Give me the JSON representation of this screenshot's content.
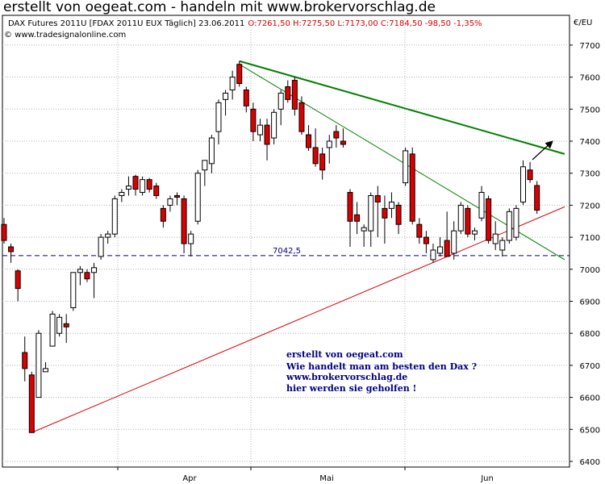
{
  "headline": "erstellt von oegeat.com - handeln mit www.brokervorschlag.de",
  "info": {
    "instrument": "DAX Futures 2011U [FDAX 2011U EUX  Täglich] 23.06.2011",
    "ohlc": "O:7261,50 H:7275,50 L:7173,00 C:7184,50 -98,50 -1,35%",
    "copyright": "© www.tradesignalonline.com",
    "currency": "€/EU"
  },
  "colors": {
    "bull": "#ffffff",
    "bear": "#dd0000",
    "wick": "#000000",
    "trend_green": "#008000",
    "trend_red": "#dd0000",
    "note": "#000080",
    "support": "#000080"
  },
  "chart_data": {
    "type": "candlestick",
    "y_axis": {
      "min": 6400,
      "max": 7700,
      "ticks": [
        6400,
        6500,
        6600,
        6700,
        6800,
        6900,
        7000,
        7100,
        7200,
        7300,
        7400,
        7500,
        7600,
        7700
      ]
    },
    "x_labels": [
      "Apr",
      "Mai",
      "Jun"
    ],
    "candles": [
      {
        "o": 7140,
        "h": 7160,
        "l": 7080,
        "c": 7090
      },
      {
        "o": 7070,
        "h": 7080,
        "l": 7020,
        "c": 7055
      },
      {
        "o": 6995,
        "h": 7000,
        "l": 6900,
        "c": 6940
      },
      {
        "o": 6740,
        "h": 6790,
        "l": 6650,
        "c": 6690
      },
      {
        "o": 6670,
        "h": 6680,
        "l": 6490,
        "c": 6490
      },
      {
        "o": 6600,
        "h": 6810,
        "l": 6600,
        "c": 6800
      },
      {
        "o": 6680,
        "h": 6710,
        "l": 6680,
        "c": 6690
      },
      {
        "o": 6760,
        "h": 6870,
        "l": 6760,
        "c": 6860
      },
      {
        "o": 6800,
        "h": 6860,
        "l": 6790,
        "c": 6850
      },
      {
        "o": 6830,
        "h": 6860,
        "l": 6770,
        "c": 6820
      },
      {
        "o": 6880,
        "h": 6990,
        "l": 6870,
        "c": 6990
      },
      {
        "o": 6990,
        "h": 7010,
        "l": 6950,
        "c": 7000
      },
      {
        "o": 6990,
        "h": 7000,
        "l": 6960,
        "c": 6970
      },
      {
        "o": 6990,
        "h": 7020,
        "l": 6910,
        "c": 7005
      },
      {
        "o": 7040,
        "h": 7110,
        "l": 7030,
        "c": 7100
      },
      {
        "o": 7100,
        "h": 7120,
        "l": 7080,
        "c": 7110
      },
      {
        "o": 7110,
        "h": 7230,
        "l": 7100,
        "c": 7220
      },
      {
        "o": 7230,
        "h": 7250,
        "l": 7210,
        "c": 7240
      },
      {
        "o": 7250,
        "h": 7290,
        "l": 7230,
        "c": 7260
      },
      {
        "o": 7290,
        "h": 7295,
        "l": 7230,
        "c": 7250
      },
      {
        "o": 7240,
        "h": 7290,
        "l": 7230,
        "c": 7280
      },
      {
        "o": 7280,
        "h": 7285,
        "l": 7240,
        "c": 7250
      },
      {
        "o": 7260,
        "h": 7270,
        "l": 7220,
        "c": 7230
      },
      {
        "o": 7190,
        "h": 7200,
        "l": 7130,
        "c": 7150
      },
      {
        "o": 7200,
        "h": 7230,
        "l": 7180,
        "c": 7220
      },
      {
        "o": 7230,
        "h": 7240,
        "l": 7200,
        "c": 7225
      },
      {
        "o": 7220,
        "h": 7230,
        "l": 7050,
        "c": 7080
      },
      {
        "o": 7080,
        "h": 7120,
        "l": 7040,
        "c": 7110
      },
      {
        "o": 7150,
        "h": 7310,
        "l": 7140,
        "c": 7300
      },
      {
        "o": 7310,
        "h": 7340,
        "l": 7260,
        "c": 7340
      },
      {
        "o": 7330,
        "h": 7420,
        "l": 7300,
        "c": 7410
      },
      {
        "o": 7430,
        "h": 7530,
        "l": 7390,
        "c": 7520
      },
      {
        "o": 7530,
        "h": 7560,
        "l": 7480,
        "c": 7550
      },
      {
        "o": 7560,
        "h": 7620,
        "l": 7530,
        "c": 7600
      },
      {
        "o": 7640,
        "h": 7650,
        "l": 7570,
        "c": 7580
      },
      {
        "o": 7560,
        "h": 7570,
        "l": 7490,
        "c": 7510
      },
      {
        "o": 7500,
        "h": 7520,
        "l": 7400,
        "c": 7430
      },
      {
        "o": 7420,
        "h": 7470,
        "l": 7400,
        "c": 7450
      },
      {
        "o": 7450,
        "h": 7470,
        "l": 7340,
        "c": 7390
      },
      {
        "o": 7410,
        "h": 7500,
        "l": 7390,
        "c": 7490
      },
      {
        "o": 7500,
        "h": 7560,
        "l": 7450,
        "c": 7550
      },
      {
        "o": 7570,
        "h": 7590,
        "l": 7520,
        "c": 7530
      },
      {
        "o": 7590,
        "h": 7600,
        "l": 7480,
        "c": 7500
      },
      {
        "o": 7520,
        "h": 7540,
        "l": 7420,
        "c": 7430
      },
      {
        "o": 7420,
        "h": 7450,
        "l": 7370,
        "c": 7380
      },
      {
        "o": 7380,
        "h": 7440,
        "l": 7320,
        "c": 7330
      },
      {
        "o": 7360,
        "h": 7380,
        "l": 7280,
        "c": 7310
      },
      {
        "o": 7380,
        "h": 7420,
        "l": 7330,
        "c": 7400
      },
      {
        "o": 7430,
        "h": 7450,
        "l": 7380,
        "c": 7410
      },
      {
        "o": 7400,
        "h": 7440,
        "l": 7380,
        "c": 7390
      },
      {
        "o": 7240,
        "h": 7250,
        "l": 7070,
        "c": 7150
      },
      {
        "o": 7170,
        "h": 7210,
        "l": 7110,
        "c": 7150
      },
      {
        "o": 7120,
        "h": 7140,
        "l": 7070,
        "c": 7130
      },
      {
        "o": 7120,
        "h": 7240,
        "l": 7070,
        "c": 7230
      },
      {
        "o": 7230,
        "h": 7260,
        "l": 7100,
        "c": 7210
      },
      {
        "o": 7190,
        "h": 7230,
        "l": 7080,
        "c": 7160
      },
      {
        "o": 7190,
        "h": 7240,
        "l": 7160,
        "c": 7210
      },
      {
        "o": 7200,
        "h": 7210,
        "l": 7110,
        "c": 7140
      },
      {
        "o": 7270,
        "h": 7380,
        "l": 7260,
        "c": 7370
      },
      {
        "o": 7360,
        "h": 7380,
        "l": 7140,
        "c": 7150
      },
      {
        "o": 7140,
        "h": 7160,
        "l": 7080,
        "c": 7100
      },
      {
        "o": 7100,
        "h": 7120,
        "l": 7050,
        "c": 7080
      },
      {
        "o": 7030,
        "h": 7080,
        "l": 7020,
        "c": 7060
      },
      {
        "o": 7050,
        "h": 7100,
        "l": 7040,
        "c": 7070
      },
      {
        "o": 7090,
        "h": 7180,
        "l": 7040,
        "c": 7040
      },
      {
        "o": 7050,
        "h": 7150,
        "l": 7030,
        "c": 7120
      },
      {
        "o": 7120,
        "h": 7210,
        "l": 7110,
        "c": 7200
      },
      {
        "o": 7190,
        "h": 7200,
        "l": 7100,
        "c": 7110
      },
      {
        "o": 7110,
        "h": 7130,
        "l": 7090,
        "c": 7120
      },
      {
        "o": 7160,
        "h": 7260,
        "l": 7150,
        "c": 7240
      },
      {
        "o": 7220,
        "h": 7230,
        "l": 7080,
        "c": 7090
      },
      {
        "o": 7080,
        "h": 7150,
        "l": 7060,
        "c": 7110
      },
      {
        "o": 7060,
        "h": 7100,
        "l": 7040,
        "c": 7090
      },
      {
        "o": 7090,
        "h": 7190,
        "l": 7080,
        "c": 7180
      },
      {
        "o": 7100,
        "h": 7200,
        "l": 7090,
        "c": 7190
      },
      {
        "o": 7210,
        "h": 7340,
        "l": 7200,
        "c": 7320
      },
      {
        "o": 7310,
        "h": 7335,
        "l": 7270,
        "c": 7280
      },
      {
        "o": 7261.5,
        "h": 7275.5,
        "l": 7173,
        "c": 7184.5
      }
    ],
    "support_level": {
      "value": 7042.5,
      "label": "7042,5"
    },
    "trendlines": [
      {
        "color": "#008000",
        "kind": "resistance-thick",
        "from": {
          "candle": 34,
          "value": 7650
        },
        "to": {
          "candle": 81,
          "value": 7360
        }
      },
      {
        "color": "#008000",
        "kind": "resistance-thin",
        "from": {
          "candle": 34,
          "value": 7640
        },
        "to": {
          "candle": 81,
          "value": 7030
        }
      },
      {
        "color": "#dd0000",
        "kind": "support",
        "from": {
          "candle": 4,
          "value": 6490
        },
        "to": {
          "candle": 81,
          "value": 7195
        }
      }
    ]
  },
  "note": {
    "lines": [
      "erstellt von oegeat.com",
      "Wie handelt man am besten den Dax ?",
      "www.brokervorschlag.de",
      "hier werden sie geholfen !"
    ]
  }
}
